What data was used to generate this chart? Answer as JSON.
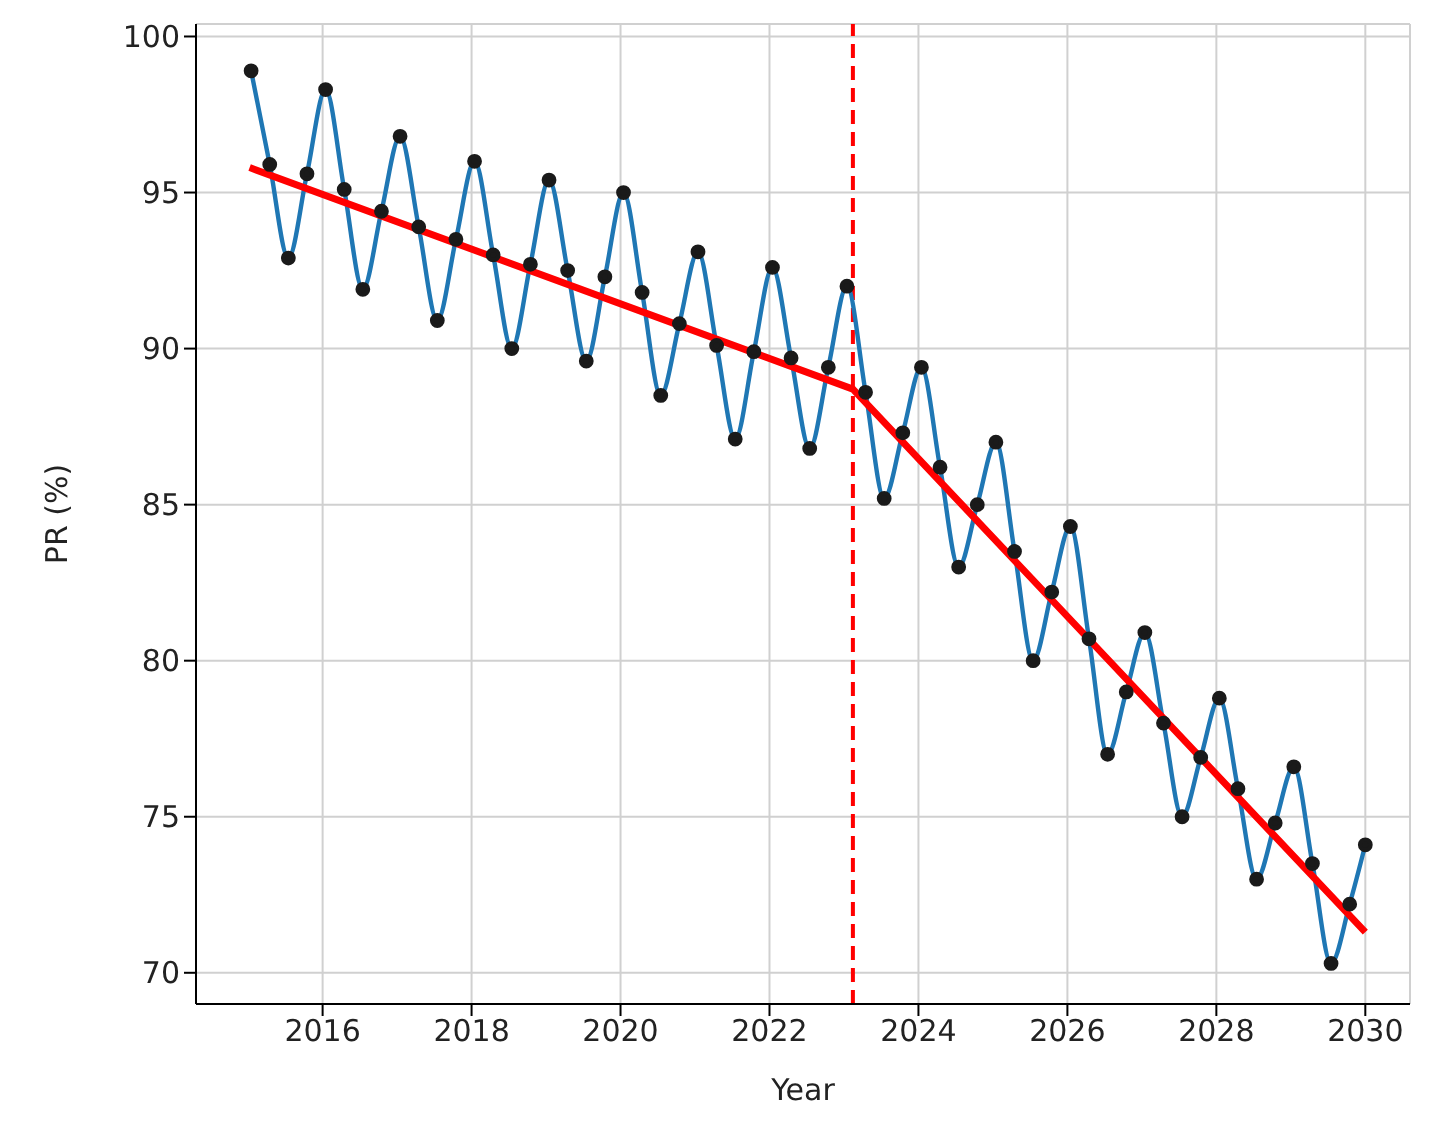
{
  "chart_data": {
    "type": "line",
    "xlabel": "Year",
    "ylabel": "PR (%)",
    "xlim": [
      2014.3,
      2030.6
    ],
    "ylim": [
      69,
      100.4
    ],
    "xticks": [
      2016,
      2018,
      2020,
      2022,
      2024,
      2026,
      2028,
      2030
    ],
    "yticks": [
      70,
      75,
      80,
      85,
      90,
      95,
      100
    ],
    "grid": true,
    "series": [
      {
        "color": "#1f77b4",
        "marker": "circle",
        "x": [
          2015.04,
          2015.29,
          2015.54,
          2015.79,
          2016.04,
          2016.29,
          2016.54,
          2016.79,
          2017.04,
          2017.29,
          2017.54,
          2017.79,
          2018.04,
          2018.29,
          2018.54,
          2018.79,
          2019.04,
          2019.29,
          2019.54,
          2019.79,
          2020.04,
          2020.29,
          2020.54,
          2020.79,
          2021.04,
          2021.29,
          2021.54,
          2021.79,
          2022.04,
          2022.29,
          2022.54,
          2022.79,
          2023.04,
          2023.29,
          2023.54,
          2023.79,
          2024.04,
          2024.29,
          2024.54,
          2024.79,
          2025.04,
          2025.29,
          2025.54,
          2025.79,
          2026.04,
          2026.29,
          2026.54,
          2026.79,
          2027.04,
          2027.29,
          2027.54,
          2027.79,
          2028.04,
          2028.29,
          2028.54,
          2028.79,
          2029.04,
          2029.29,
          2029.54,
          2029.79,
          2030.0
        ],
        "values": [
          98.9,
          95.9,
          92.9,
          95.6,
          98.3,
          95.1,
          91.9,
          94.4,
          96.8,
          93.9,
          90.9,
          93.5,
          96.0,
          93.0,
          90.0,
          92.7,
          95.4,
          92.5,
          89.6,
          92.3,
          95.0,
          91.8,
          88.5,
          90.8,
          93.1,
          90.1,
          87.1,
          89.9,
          92.6,
          89.7,
          86.8,
          89.4,
          92.0,
          88.6,
          85.2,
          87.3,
          89.4,
          86.2,
          83.0,
          85.0,
          87.0,
          83.5,
          80.0,
          82.2,
          84.3,
          80.7,
          77.0,
          79.0,
          80.9,
          78.0,
          75.0,
          76.9,
          78.8,
          75.9,
          73.0,
          74.8,
          76.6,
          73.5,
          70.3,
          72.2,
          74.1
        ]
      },
      {
        "color": "#ff0000",
        "marker": "none",
        "x": [
          2015.02,
          2023.12,
          2030.0
        ],
        "values": [
          95.8,
          88.7,
          71.3
        ]
      }
    ],
    "ref_lines": [
      {
        "axis": "x",
        "value": 2023.12,
        "color": "#ff0000",
        "line_style": "dashed"
      }
    ]
  }
}
